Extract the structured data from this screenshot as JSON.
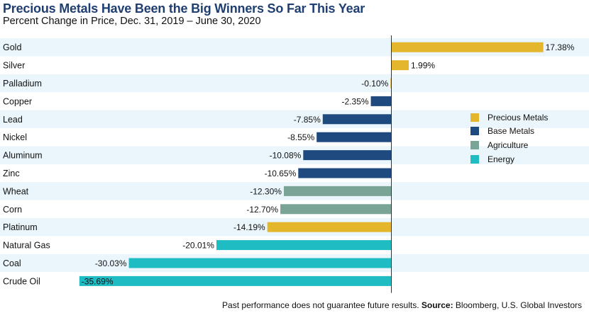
{
  "header": {
    "title": "Precious Metals Have Been the Big Winners So Far This Year",
    "subtitle": "Percent Change in Price, Dec. 31, 2019 – June 30, 2020"
  },
  "footnote": {
    "text": "Past performance does not guarantee future results.",
    "source_label": "Source:",
    "source": "Bloomberg, U.S. Global Investors"
  },
  "legend": [
    {
      "name": "Precious Metals",
      "color": "#e4b62c"
    },
    {
      "name": "Base Metals",
      "color": "#1f4a80"
    },
    {
      "name": "Agriculture",
      "color": "#7aa596"
    },
    {
      "name": "Energy",
      "color": "#1fbcc4"
    }
  ],
  "chart_data": {
    "type": "bar",
    "orientation": "horizontal",
    "categories": [
      "Gold",
      "Silver",
      "Palladium",
      "Copper",
      "Lead",
      "Nickel",
      "Aluminum",
      "Zinc",
      "Wheat",
      "Corn",
      "Platinum",
      "Natural Gas",
      "Coal",
      "Crude Oil"
    ],
    "values": [
      17.38,
      1.99,
      -0.1,
      -2.35,
      -7.85,
      -8.55,
      -10.08,
      -10.65,
      -12.3,
      -12.7,
      -14.19,
      -20.01,
      -30.03,
      -35.69
    ],
    "data_labels": [
      "17.38%",
      "1.99%",
      "-0.10%",
      "-2.35%",
      "-7.85%",
      "-8.55%",
      "-10.08%",
      "-10.65%",
      "-12.30%",
      "-12.70%",
      "-14.19%",
      "-20.01%",
      "-30.03%",
      "-35.69%"
    ],
    "groups": [
      "Precious Metals",
      "Precious Metals",
      "Precious Metals",
      "Base Metals",
      "Base Metals",
      "Base Metals",
      "Base Metals",
      "Base Metals",
      "Agriculture",
      "Agriculture",
      "Precious Metals",
      "Energy",
      "Energy",
      "Energy"
    ],
    "xlim": [
      -36,
      18
    ],
    "row_band_color": "#eaf6fb",
    "legend_position": "right",
    "grid": false
  }
}
